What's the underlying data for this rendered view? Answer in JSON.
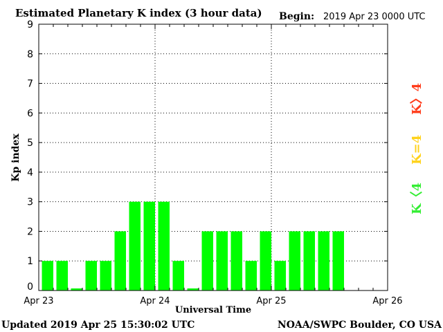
{
  "header": {
    "title": "Estimated Planetary K index (3 hour data)",
    "begin_label": "Begin:",
    "begin_value": "2019 Apr 23 0000 UTC"
  },
  "footer": {
    "updated": "Updated 2019 Apr 25 15:30:02 UTC",
    "source": "NOAA/SWPC Boulder, CO USA"
  },
  "legend": {
    "storm": {
      "label": "K〉4",
      "color": "#ff3b1a"
    },
    "active": {
      "label": "K=4",
      "color": "#ffd21a"
    },
    "quiet": {
      "label": "K〈4",
      "color": "#33ee33"
    }
  },
  "chart_data": {
    "type": "bar",
    "xlabel": "Universal Time",
    "ylabel": "Kp index",
    "ylim": [
      0,
      9
    ],
    "y_ticks": [
      "0",
      "1",
      "2",
      "3",
      "4",
      "5",
      "6",
      "7",
      "8",
      "9"
    ],
    "x_ticks": [
      "Apr 23",
      "Apr 24",
      "Apr 25",
      "Apr 26"
    ],
    "grid": true,
    "bar_color": "#00ff00",
    "x": [
      "2019-04-23 00:00",
      "2019-04-23 03:00",
      "2019-04-23 06:00",
      "2019-04-23 09:00",
      "2019-04-23 12:00",
      "2019-04-23 15:00",
      "2019-04-23 18:00",
      "2019-04-23 21:00",
      "2019-04-24 00:00",
      "2019-04-24 03:00",
      "2019-04-24 06:00",
      "2019-04-24 09:00",
      "2019-04-24 12:00",
      "2019-04-24 15:00",
      "2019-04-24 18:00",
      "2019-04-24 21:00",
      "2019-04-25 00:00",
      "2019-04-25 03:00",
      "2019-04-25 06:00",
      "2019-04-25 09:00",
      "2019-04-25 12:00"
    ],
    "values": [
      1,
      1,
      0.07,
      1,
      1,
      2,
      3,
      3,
      3,
      1,
      0.07,
      2,
      2,
      2,
      1,
      2,
      1,
      2,
      2,
      2,
      2
    ]
  }
}
